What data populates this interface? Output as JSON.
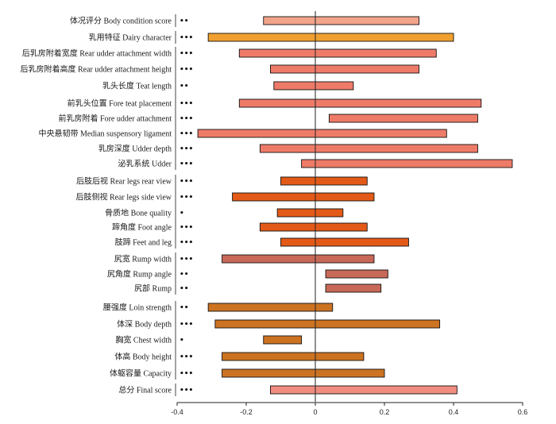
{
  "chart_data": {
    "type": "bar",
    "orientation": "horizontal-range",
    "title": "",
    "xlabel": "",
    "ylabel": "",
    "xlim": [
      -0.4,
      0.6
    ],
    "xticks": [
      "-0.4",
      "-0.2",
      "0",
      "0.2",
      "0.4",
      "0.6"
    ],
    "grid": false,
    "categories": [
      {
        "label": "体况评分 Body condition score",
        "low": -0.15,
        "high": 0.3,
        "sig": "••",
        "color": "#f2a48a",
        "group": 0
      },
      {
        "label": "乳用特征 Dairy character",
        "low": -0.31,
        "high": 0.4,
        "sig": "•••",
        "color": "#f0a030",
        "group": 1
      },
      {
        "label": "后乳房附着宽度 Rear udder attachment width",
        "low": -0.22,
        "high": 0.35,
        "sig": "•••",
        "color": "#ee7b68",
        "group": 2
      },
      {
        "label": "后乳房附着高度 Rear udder attachment height",
        "low": -0.13,
        "high": 0.3,
        "sig": "•••",
        "color": "#ee7b68",
        "group": 2
      },
      {
        "label": "乳头长度 Teat length",
        "low": -0.12,
        "high": 0.11,
        "sig": "••",
        "color": "#ee7b68",
        "group": 2
      },
      {
        "label": "前乳头位置 Fore teat placement",
        "low": -0.22,
        "high": 0.48,
        "sig": "•••",
        "color": "#ee7b68",
        "group": 2
      },
      {
        "label": "前乳房附着 Fore udder attachment",
        "low": 0.04,
        "high": 0.47,
        "sig": "•••",
        "color": "#ee7b68",
        "group": 2
      },
      {
        "label": "中央悬韧带 Median suspensory ligament",
        "low": -0.34,
        "high": 0.38,
        "sig": "•••",
        "color": "#ee7b68",
        "group": 2
      },
      {
        "label": "乳房深度 Udder depth",
        "low": -0.16,
        "high": 0.47,
        "sig": "•••",
        "color": "#ee7b68",
        "group": 2
      },
      {
        "label": "泌乳系统 Udder",
        "low": -0.04,
        "high": 0.57,
        "sig": "•••",
        "color": "#ee7b68",
        "group": 2
      },
      {
        "label": "后肢后视 Rear legs rear view",
        "low": -0.1,
        "high": 0.15,
        "sig": "•••",
        "color": "#e35a18",
        "group": 3
      },
      {
        "label": "后肢侧视 Rear legs side view",
        "low": -0.24,
        "high": 0.17,
        "sig": "•••",
        "color": "#e35a18",
        "group": 3
      },
      {
        "label": "骨质地 Bone quality",
        "low": -0.11,
        "high": 0.08,
        "sig": "•",
        "color": "#e35a18",
        "group": 3
      },
      {
        "label": "蹄角度 Foot angle",
        "low": -0.16,
        "high": 0.15,
        "sig": "•••",
        "color": "#e35a18",
        "group": 3
      },
      {
        "label": "肢蹄 Feet and leg",
        "low": -0.1,
        "high": 0.27,
        "sig": "•••",
        "color": "#e35a18",
        "group": 3
      },
      {
        "label": "尻宽 Rump width",
        "low": -0.27,
        "high": 0.17,
        "sig": "•••",
        "color": "#c86858",
        "group": 4
      },
      {
        "label": "尻角度 Rump angle",
        "low": 0.03,
        "high": 0.21,
        "sig": "••",
        "color": "#c86858",
        "group": 4
      },
      {
        "label": "尻部 Rump",
        "low": 0.03,
        "high": 0.19,
        "sig": "••",
        "color": "#c86858",
        "group": 4
      },
      {
        "label": "腰强度 Loin strength",
        "low": -0.31,
        "high": 0.05,
        "sig": "••",
        "color": "#cc7322",
        "group": 5
      },
      {
        "label": "体深 Body depth",
        "low": -0.29,
        "high": 0.36,
        "sig": "•••",
        "color": "#cc7322",
        "group": 5
      },
      {
        "label": "胸宽 Chest width",
        "low": -0.15,
        "high": -0.04,
        "sig": "•",
        "color": "#cc7322",
        "group": 5
      },
      {
        "label": "体高 Body height",
        "low": -0.27,
        "high": 0.14,
        "sig": "•••",
        "color": "#cc7322",
        "group": 5
      },
      {
        "label": "体躯容量 Capacity",
        "low": -0.27,
        "high": 0.2,
        "sig": "•••",
        "color": "#cc7322",
        "group": 5
      },
      {
        "label": "总分 Final score",
        "low": -0.13,
        "high": 0.41,
        "sig": "•••",
        "color": "#f08c80",
        "group": 6
      }
    ]
  }
}
